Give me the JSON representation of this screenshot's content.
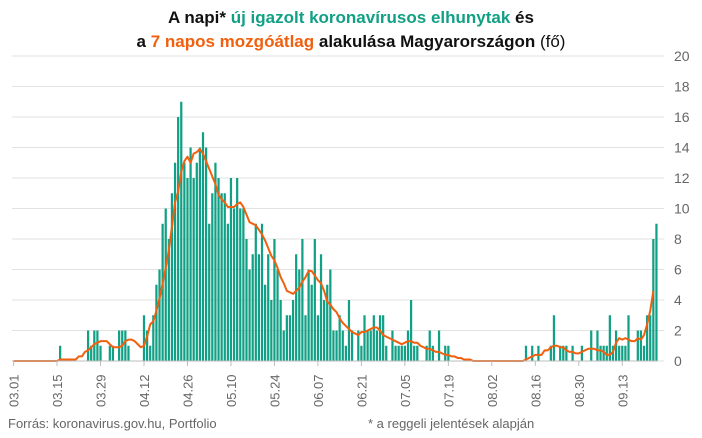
{
  "title": {
    "line1_a": "A napi* ",
    "line1_b": "új igazolt koronavírusos elhunytak",
    "line1_c": " és",
    "line2_a": "a ",
    "line2_b": "7 napos mozgóátlag",
    "line2_c": " alakulása Magyarországon ",
    "line2_d": "(fő)"
  },
  "footer": {
    "source": "Forrás: koronavirus.gov.hu, Portfolio",
    "note": "* a reggeli jelentések alapján"
  },
  "colors": {
    "bars": "#11a085",
    "line": "#f0600e",
    "grid": "#e2e2e2",
    "text": "#666666"
  },
  "chart_data": {
    "type": "bar",
    "ylim": [
      0,
      20
    ],
    "yticks": [
      0,
      2,
      4,
      6,
      8,
      10,
      12,
      14,
      16,
      18,
      20
    ],
    "xtick_labels": [
      "03.01",
      "03.15",
      "03.29",
      "04.12",
      "04.26",
      "05.10",
      "05.24",
      "06.07",
      "06.21",
      "07.05",
      "07.19",
      "08.02",
      "08.16",
      "08.30",
      "09.13"
    ],
    "xtick_interval_days": 14,
    "grid": true,
    "y_axis_side": "right",
    "series": [
      {
        "type": "bar",
        "values": [
          0,
          0,
          0,
          0,
          0,
          0,
          0,
          0,
          0,
          0,
          0,
          0,
          0,
          0,
          0,
          1,
          0,
          0,
          0,
          0,
          0,
          0,
          0,
          0,
          2,
          1,
          2,
          2,
          1,
          0,
          0,
          1,
          1,
          0,
          2,
          2,
          2,
          1,
          0,
          0,
          0,
          0,
          3,
          2,
          1,
          3,
          5,
          6,
          9,
          10,
          8,
          11,
          13,
          16,
          17,
          13,
          12,
          14,
          12,
          13,
          14,
          15,
          14,
          9,
          11,
          13,
          12,
          11,
          11,
          9,
          12,
          10,
          12,
          10,
          10,
          8,
          6,
          7,
          9,
          7,
          9,
          5,
          7,
          4,
          8,
          6,
          4,
          2,
          3,
          3,
          4,
          7,
          6,
          8,
          3,
          6,
          5,
          8,
          3,
          7,
          4,
          5,
          6,
          2,
          2,
          3,
          2,
          1,
          4,
          2,
          0,
          2,
          1,
          3,
          2,
          2,
          3,
          2,
          3,
          3,
          1,
          0,
          2,
          1,
          1,
          1,
          1,
          2,
          4,
          1,
          1,
          0,
          0,
          1,
          2,
          1,
          0,
          2,
          0,
          1,
          1,
          0,
          0,
          0,
          0,
          0,
          0,
          0,
          0,
          0,
          0,
          0,
          0,
          0,
          0,
          0,
          0,
          0,
          0,
          0,
          0,
          0,
          0,
          0,
          0,
          1,
          0,
          1,
          0,
          1,
          0,
          0,
          0,
          1,
          3,
          0,
          1,
          1,
          1,
          0,
          1,
          0,
          0,
          1,
          0,
          0,
          2,
          0,
          2,
          1,
          1,
          1,
          3,
          1,
          2,
          1,
          1,
          1,
          3,
          0,
          0,
          2,
          2,
          1,
          3,
          3,
          8,
          9
        ]
      },
      {
        "type": "line",
        "values": [
          0,
          0,
          0,
          0,
          0,
          0,
          0,
          0,
          0,
          0,
          0,
          0,
          0,
          0,
          0,
          0.1,
          0.1,
          0.1,
          0.1,
          0.1,
          0.1,
          0.3,
          0.3,
          0.6,
          0.7,
          0.9,
          1.1,
          1.2,
          1.3,
          1.3,
          1.3,
          1.1,
          0.9,
          0.9,
          0.9,
          1.0,
          1.3,
          1.4,
          1.4,
          1.3,
          1.1,
          0.9,
          1.0,
          1.6,
          2.4,
          2.6,
          3.3,
          4.1,
          5.1,
          6.1,
          7.3,
          8.8,
          10.4,
          11.1,
          12.4,
          13.1,
          13.4,
          13.0,
          13.6,
          13.7,
          13.9,
          13.6,
          13.1,
          12.6,
          12.1,
          11.6,
          10.9,
          10.6,
          10.4,
          10.1,
          10.1,
          10.1,
          10.3,
          10.4,
          10.1,
          9.6,
          9.1,
          9.0,
          8.9,
          8.6,
          8.3,
          7.9,
          7.4,
          6.9,
          6.6,
          6.1,
          5.5,
          5.1,
          4.6,
          4.5,
          4.4,
          4.6,
          4.8,
          5.2,
          5.5,
          5.9,
          5.9,
          5.6,
          5.3,
          5.1,
          4.6,
          3.9,
          3.7,
          3.4,
          3.2,
          2.8,
          2.5,
          2.3,
          2.1,
          1.9,
          1.8,
          1.7,
          1.9,
          1.9,
          2.0,
          2.1,
          2.2,
          2.2,
          2.0,
          1.7,
          1.6,
          1.5,
          1.4,
          1.3,
          1.2,
          1.1,
          1.2,
          1.3,
          1.3,
          1.2,
          1.2,
          1.0,
          0.9,
          0.8,
          0.8,
          0.7,
          0.6,
          0.6,
          0.5,
          0.4,
          0.4,
          0.3,
          0.3,
          0.2,
          0.2,
          0.1,
          0.1,
          0.1,
          0,
          0,
          0,
          0,
          0,
          0,
          0,
          0,
          0,
          0,
          0,
          0,
          0,
          0,
          0,
          0,
          0,
          0.1,
          0.2,
          0.3,
          0.4,
          0.4,
          0.4,
          0.7,
          0.7,
          0.9,
          1.0,
          1.0,
          0.9,
          0.9,
          0.7,
          0.6,
          0.6,
          0.5,
          0.5,
          0.6,
          0.7,
          0.8,
          0.8,
          0.8,
          0.7,
          0.7,
          0.6,
          0.4,
          0.4,
          0.6,
          1.2,
          1.5,
          1.4,
          1.5,
          1.4,
          1.3,
          1.3,
          1.5,
          1.4,
          1.7,
          2.4,
          3.3,
          4.6
        ]
      }
    ]
  }
}
